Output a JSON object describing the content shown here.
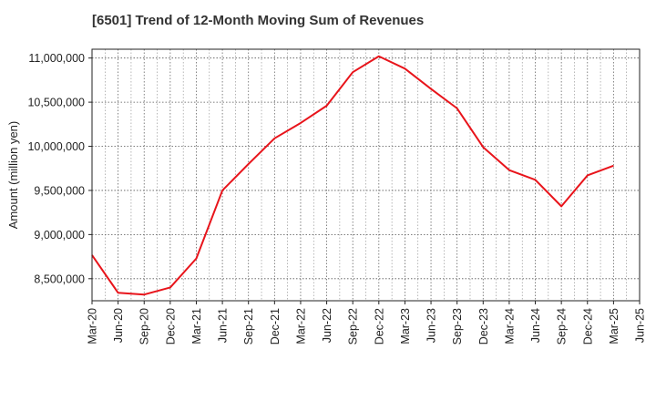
{
  "chart_data": {
    "type": "line",
    "title": "[6501]  Trend of 12-Month Moving Sum of Revenues",
    "ylabel": "Amount (million yen)",
    "xlabel": "",
    "ylim": [
      8250000,
      11100000
    ],
    "yticks": [
      8500000,
      9000000,
      9500000,
      10000000,
      10500000,
      11000000
    ],
    "ytick_labels": [
      "8,500,000",
      "9,000,000",
      "9,500,000",
      "10,000,000",
      "10,500,000",
      "11,000,000"
    ],
    "categories": [
      "Mar-20",
      "Jun-20",
      "Sep-20",
      "Dec-20",
      "Mar-21",
      "Jun-21",
      "Sep-21",
      "Dec-21",
      "Mar-22",
      "Jun-22",
      "Sep-22",
      "Dec-22",
      "Mar-23",
      "Jun-23",
      "Sep-23",
      "Dec-23",
      "Mar-24",
      "Jun-24",
      "Sep-24",
      "Dec-24",
      "Mar-25",
      "Jun-25"
    ],
    "grid": true,
    "series": [
      {
        "color": "#e8141b",
        "values": [
          8767000,
          8340000,
          8320000,
          8400000,
          8729000,
          9500000,
          9800000,
          10090000,
          10264000,
          10460000,
          10840000,
          11020000,
          10880000,
          10650000,
          10430000,
          9990000,
          9730000,
          9620000,
          9320000,
          9670000,
          9780000,
          null
        ]
      }
    ]
  }
}
